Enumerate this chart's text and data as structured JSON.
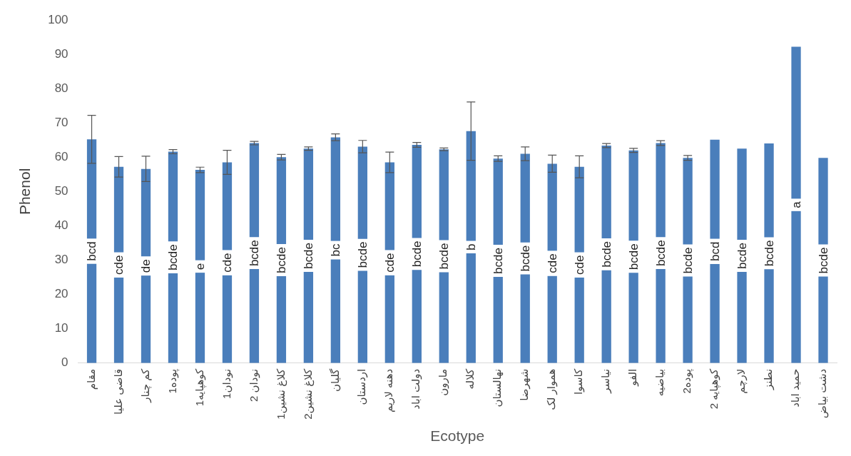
{
  "chart_data": {
    "type": "bar",
    "xlabel": "Ecotype",
    "ylabel": "Phenol",
    "categories": [
      "مقام",
      "قاضی علیا",
      "کم چنار",
      "پوده1",
      "کوهپایه1",
      "نودان1",
      "نودان 2",
      "کلاغ نشین1",
      "کلاغ نشین2",
      "گلیان",
      "اردستان",
      "دهنه لاریم",
      "دولت اباد",
      "مارون",
      "کلاله",
      "نهالستان",
      "شهرضا",
      "هموار لک",
      "کاسوا",
      "نیاسر",
      "الفو",
      "بیاضیه",
      "پوده2",
      "کوهپایه 2",
      "لارچم",
      "نطنز",
      "حمید اباد",
      "دشت بیاض"
    ],
    "series": [
      {
        "color": "#4a7ebb",
        "values": [
          65.2,
          57.2,
          56.6,
          61.6,
          56.3,
          58.5,
          64.1,
          60.0,
          62.5,
          65.8,
          63.1,
          58.5,
          63.6,
          62.3,
          67.6,
          59.6,
          61.0,
          58.1,
          57.2,
          63.4,
          62.0,
          64.1,
          59.8,
          65.1,
          62.5,
          64.0,
          92.2,
          59.8
        ],
        "errors": [
          7,
          3,
          3.7,
          0.6,
          0.8,
          3.5,
          0.5,
          0.8,
          0.5,
          1,
          1.8,
          3,
          0.7,
          0.4,
          8.5,
          0.8,
          2,
          2.5,
          3.2,
          0.6,
          0.6,
          0.7,
          0.7,
          null,
          null,
          null,
          null,
          null
        ],
        "value_labels": [
          "bcd",
          "cde",
          "de",
          "bcde",
          "e",
          "cde",
          "bcde",
          "bcde",
          "bcde",
          "bc",
          "bcde",
          "cde",
          "bcde",
          "bcde",
          "b",
          "bcde",
          "bcde",
          "cde",
          "cde",
          "bcde",
          "bcde",
          "bcde",
          "bcde",
          "bcd",
          "bcde",
          "bcde",
          "a",
          "bcde"
        ]
      }
    ],
    "ylim": [
      0,
      100
    ],
    "yticks": [
      0,
      10,
      20,
      30,
      40,
      50,
      60,
      70,
      80,
      90,
      100
    ],
    "grid": false,
    "legend": false
  }
}
